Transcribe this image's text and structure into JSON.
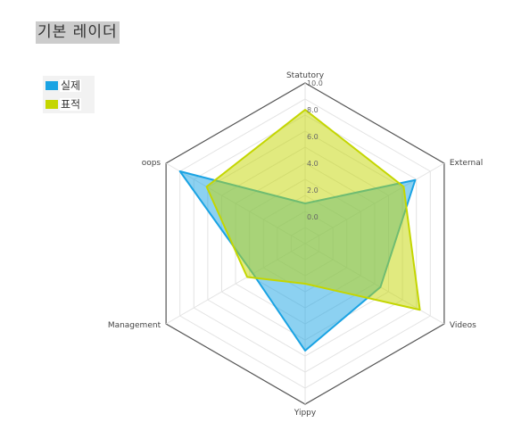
{
  "title": "기본 레이더",
  "chart_data": {
    "type": "radar",
    "axes": [
      "Statutory",
      "External",
      "Videos",
      "Yippy",
      "Management",
      "oops"
    ],
    "range": [
      -2.0,
      10.0
    ],
    "ticks": [
      "0.0",
      "2.0",
      "4.0",
      "6.0",
      "8.0",
      "10.0"
    ],
    "grid": true,
    "legend_position": "top-left",
    "series": [
      {
        "name": "실제",
        "color": "#1aa3e3",
        "values": [
          1.0,
          7.5,
          4.5,
          6.0,
          2.5,
          8.8
        ]
      },
      {
        "name": "표적",
        "color": "#c4d600",
        "values": [
          8.0,
          6.5,
          7.9,
          1.0,
          3.0,
          6.5
        ]
      }
    ]
  }
}
